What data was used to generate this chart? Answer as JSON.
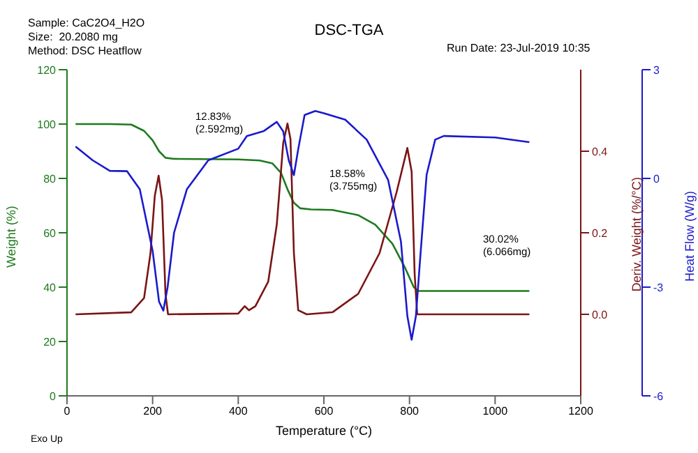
{
  "chart_data": {
    "type": "line",
    "title": "DSC-TGA",
    "xlabel": "Temperature (°C)",
    "ylabel": "Weight (%)",
    "y2label": "Deriv. Weight (%/°C)",
    "y3label": "Heat Flow (W/g)",
    "xlim": [
      0,
      1200
    ],
    "xticks": [
      0,
      200,
      400,
      600,
      800,
      1000,
      1200
    ],
    "ylim": [
      0,
      120
    ],
    "yticks": [
      0,
      20,
      40,
      60,
      80,
      100,
      120
    ],
    "y2lim": [
      -0.2,
      0.6
    ],
    "y2ticks": [
      {
        "value": 0,
        "label": "0.0"
      },
      {
        "value": 0.2,
        "label": "0.2"
      },
      {
        "value": 0.4,
        "label": "0.4"
      }
    ],
    "y3lim": [
      -6,
      3
    ],
    "y3ticks": [
      -6,
      -3,
      0,
      3
    ],
    "marker": "none",
    "line_style": "solid",
    "series": [
      {
        "color": "#1e7a1e",
        "x": [
          20,
          100,
          150,
          180,
          200,
          215,
          230,
          250,
          400,
          450,
          480,
          500,
          515,
          530,
          545,
          570,
          620,
          680,
          720,
          760,
          790,
          810,
          820,
          1080
        ],
        "values": [
          100,
          100,
          99.8,
          97.5,
          94,
          90,
          87.6,
          87.2,
          87,
          86.6,
          85.5,
          82,
          76,
          71,
          69,
          68.6,
          68.4,
          66.5,
          63,
          56,
          47,
          40,
          38.6,
          38.6
        ]
      },
      {
        "color": "#7a1414",
        "axis": "y2",
        "x": [
          20,
          150,
          180,
          195,
          205,
          214,
          222,
          230,
          236,
          400,
          415,
          425,
          440,
          470,
          490,
          505,
          515,
          522,
          530,
          540,
          560,
          620,
          680,
          730,
          770,
          795,
          805,
          812,
          818,
          1080
        ],
        "values": [
          0,
          0.005,
          0.04,
          0.15,
          0.29,
          0.34,
          0.28,
          0.05,
          0,
          0.002,
          0.02,
          0.01,
          0.02,
          0.08,
          0.22,
          0.42,
          0.468,
          0.43,
          0.15,
          0.01,
          0,
          0.005,
          0.05,
          0.15,
          0.3,
          0.408,
          0.35,
          0.1,
          0,
          0
        ]
      },
      {
        "color": "#1a1acc",
        "axis": "y3",
        "x": [
          20,
          60,
          100,
          140,
          170,
          200,
          215,
          225,
          235,
          250,
          280,
          330,
          400,
          420,
          460,
          490,
          505,
          518,
          530,
          540,
          555,
          580,
          600,
          650,
          700,
          750,
          780,
          795,
          805,
          815,
          825,
          840,
          860,
          880,
          1000,
          1080
        ],
        "values": [
          0.88,
          0.5,
          0.21,
          0.2,
          -0.3,
          -2,
          -3.4,
          -3.65,
          -3,
          -1.5,
          -0.3,
          0.5,
          0.82,
          1.17,
          1.31,
          1.56,
          1.3,
          0.5,
          0.09,
          0.8,
          1.75,
          1.86,
          1.8,
          1.62,
          1.07,
          -0.04,
          -1.74,
          -3.8,
          -4.45,
          -3.8,
          -2.2,
          0.1,
          1.07,
          1.17,
          1.13,
          1.0
        ]
      }
    ],
    "annotations": [
      "Sample: CaC2O4_H2O",
      "Size:  20.2080 mg",
      "Method: DSC Heatflow",
      "Run Date: 23-Jul-2019 10:35",
      "Exo Up",
      "12.83%\n(2.592mg)",
      "18.58%\n(3.755mg)",
      "30.02%\n(6.066mg)"
    ]
  }
}
